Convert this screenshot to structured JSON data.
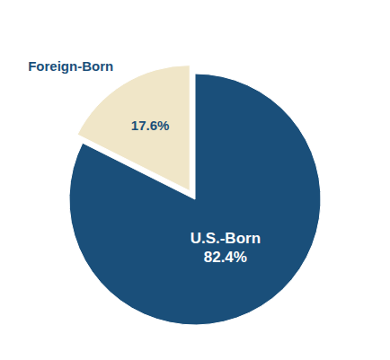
{
  "chart_data": {
    "type": "pie",
    "categories": [
      "U.S.-Born",
      "Foreign-Born"
    ],
    "values": [
      82.4,
      17.6
    ],
    "colors": [
      "#1a4f7a",
      "#f0e6c8"
    ],
    "value_labels": [
      "82.4%",
      "17.6%"
    ],
    "data_labels": true
  }
}
